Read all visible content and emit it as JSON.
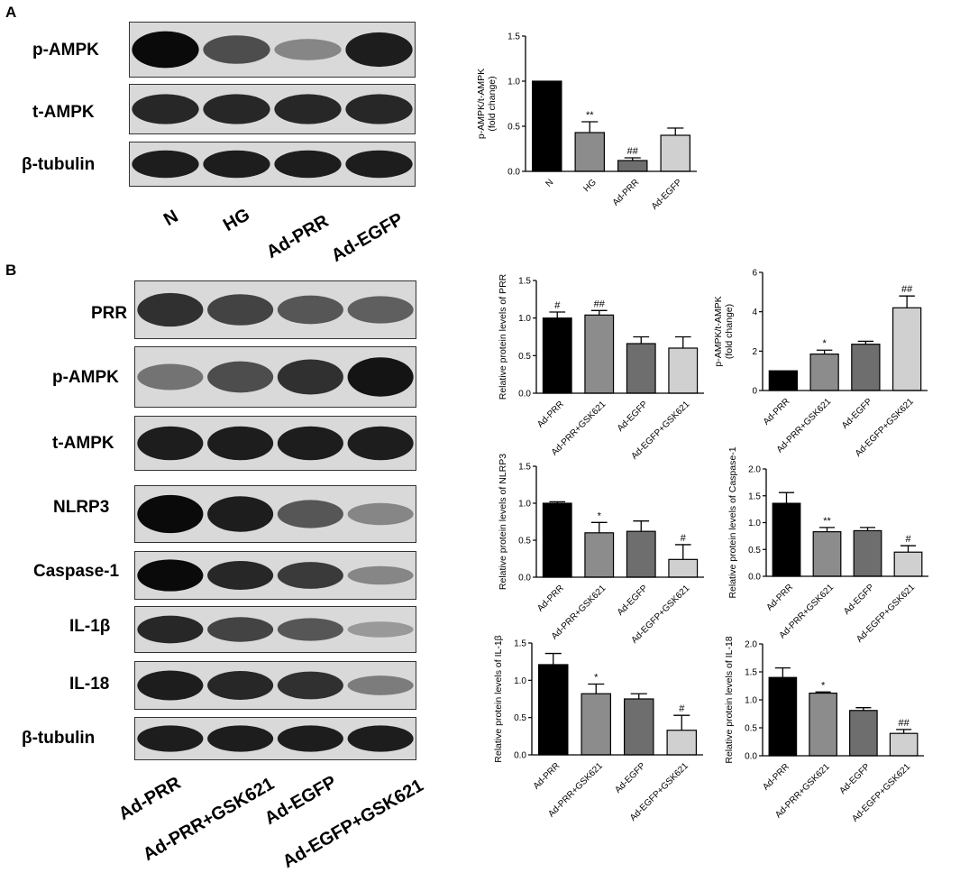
{
  "panels": {
    "a": "A",
    "b": "B"
  },
  "blots_a": {
    "rows": [
      "p-AMPK",
      "t-AMPK",
      "β-tubulin"
    ],
    "lanes": [
      "N",
      "HG",
      "Ad-PRR",
      "Ad-EGFP"
    ],
    "band_intensity": [
      [
        1.0,
        0.65,
        0.35,
        0.9
      ],
      [
        0.85,
        0.85,
        0.85,
        0.85
      ],
      [
        0.9,
        0.9,
        0.9,
        0.9
      ]
    ]
  },
  "blots_b": {
    "rows": [
      "PRR",
      "p-AMPK",
      "t-AMPK",
      "NLRP3",
      "Caspase-1",
      "IL-1β",
      "IL-18",
      "β-tubulin"
    ],
    "lanes": [
      "Ad-PRR",
      "Ad-PRR+GSK621",
      "Ad-EGFP",
      "Ad-EGFP+GSK621"
    ],
    "band_intensity": [
      [
        0.8,
        0.7,
        0.6,
        0.55
      ],
      [
        0.45,
        0.65,
        0.8,
        0.95
      ],
      [
        0.9,
        0.9,
        0.9,
        0.9
      ],
      [
        1.0,
        0.9,
        0.6,
        0.35
      ],
      [
        1.0,
        0.85,
        0.75,
        0.35
      ],
      [
        0.85,
        0.7,
        0.6,
        0.25
      ],
      [
        0.9,
        0.85,
        0.8,
        0.4
      ],
      [
        0.9,
        0.9,
        0.9,
        0.9
      ]
    ]
  },
  "chart_data": [
    {
      "id": "a-pampk",
      "type": "bar",
      "title": "",
      "ylabel_lines": [
        "p-AMPK/t-AMPK",
        "(fold change)"
      ],
      "xlabel": "",
      "categories": [
        "N",
        "HG",
        "Ad-PRR",
        "Ad-EGFP"
      ],
      "values": [
        1.0,
        0.43,
        0.12,
        0.4
      ],
      "errors": [
        0,
        0.12,
        0.03,
        0.08
      ],
      "annotations": [
        "",
        "**",
        "##",
        ""
      ],
      "ylim": [
        0,
        1.5
      ],
      "yticks": [
        "0.0",
        "0.5",
        "1.0",
        "1.5"
      ],
      "colors": [
        "#000000",
        "#8c8c8c",
        "#6e6e6e",
        "#d0d0d0"
      ]
    },
    {
      "id": "b-prr",
      "type": "bar",
      "title": "",
      "ylabel_lines": [
        "Relative protein levels of PRR"
      ],
      "xlabel": "",
      "categories": [
        "Ad-PRR",
        "Ad-PRR+GSK621",
        "Ad-EGFP",
        "Ad-EGFP+GSK621"
      ],
      "values": [
        1.0,
        1.04,
        0.66,
        0.6
      ],
      "errors": [
        0.08,
        0.06,
        0.09,
        0.15
      ],
      "annotations": [
        "#",
        "##",
        "",
        ""
      ],
      "ylim": [
        0,
        1.5
      ],
      "yticks": [
        "0.0",
        "0.5",
        "1.0",
        "1.5"
      ],
      "colors": [
        "#000000",
        "#8c8c8c",
        "#6e6e6e",
        "#d0d0d0"
      ]
    },
    {
      "id": "b-pampk",
      "type": "bar",
      "title": "",
      "ylabel_lines": [
        "p-AMPK/t-AMPK",
        "(fold change)"
      ],
      "xlabel": "",
      "categories": [
        "Ad-PRR",
        "Ad-PRR+GSK621",
        "Ad-EGFP",
        "Ad-EGFP+GSK621"
      ],
      "values": [
        1.0,
        1.85,
        2.35,
        4.2
      ],
      "errors": [
        0,
        0.2,
        0.15,
        0.6
      ],
      "annotations": [
        "",
        "*",
        "",
        "##"
      ],
      "ylim": [
        0,
        6
      ],
      "yticks": [
        "0",
        "2",
        "4",
        "6"
      ],
      "colors": [
        "#000000",
        "#8c8c8c",
        "#6e6e6e",
        "#d0d0d0"
      ]
    },
    {
      "id": "b-nlrp3",
      "type": "bar",
      "title": "",
      "ylabel_lines": [
        "Relative protein levels of NLRP3"
      ],
      "xlabel": "",
      "categories": [
        "Ad-PRR",
        "Ad-PRR+GSK621",
        "Ad-EGFP",
        "Ad-EGFP+GSK621"
      ],
      "values": [
        1.0,
        0.6,
        0.62,
        0.24
      ],
      "errors": [
        0.02,
        0.14,
        0.14,
        0.2
      ],
      "annotations": [
        "",
        "*",
        "",
        "#"
      ],
      "ylim": [
        0,
        1.5
      ],
      "yticks": [
        "0.0",
        "0.5",
        "1.0",
        "1.5"
      ],
      "colors": [
        "#000000",
        "#8c8c8c",
        "#6e6e6e",
        "#d0d0d0"
      ]
    },
    {
      "id": "b-caspase1",
      "type": "bar",
      "title": "",
      "ylabel_lines": [
        "Relative protein levels of Caspase-1"
      ],
      "xlabel": "",
      "categories": [
        "Ad-PRR",
        "Ad-PRR+GSK621",
        "Ad-EGFP",
        "Ad-EGFP+GSK621"
      ],
      "values": [
        1.36,
        0.83,
        0.85,
        0.45
      ],
      "errors": [
        0.2,
        0.08,
        0.06,
        0.12
      ],
      "annotations": [
        "",
        "**",
        "",
        "#"
      ],
      "ylim": [
        0,
        2.0
      ],
      "yticks": [
        "0.0",
        "0.5",
        "1.0",
        "1.5",
        "2.0"
      ],
      "colors": [
        "#000000",
        "#8c8c8c",
        "#6e6e6e",
        "#d0d0d0"
      ]
    },
    {
      "id": "b-il1b",
      "type": "bar",
      "title": "",
      "ylabel_lines": [
        "Relative protein levels of IL-1β"
      ],
      "xlabel": "",
      "categories": [
        "Ad-PRR",
        "Ad-PRR+GSK621",
        "Ad-EGFP",
        "Ad-EGFP+GSK621"
      ],
      "values": [
        1.21,
        0.82,
        0.75,
        0.33
      ],
      "errors": [
        0.15,
        0.13,
        0.07,
        0.2
      ],
      "annotations": [
        "",
        "*",
        "",
        "#"
      ],
      "ylim": [
        0,
        1.5
      ],
      "yticks": [
        "0.0",
        "0.5",
        "1.0",
        "1.5"
      ],
      "colors": [
        "#000000",
        "#8c8c8c",
        "#6e6e6e",
        "#d0d0d0"
      ]
    },
    {
      "id": "b-il18",
      "type": "bar",
      "title": "",
      "ylabel_lines": [
        "Relative protein levels of IL-18"
      ],
      "xlabel": "",
      "categories": [
        "Ad-PRR",
        "Ad-PRR+GSK621",
        "Ad-EGFP",
        "Ad-EGFP+GSK621"
      ],
      "values": [
        1.4,
        1.12,
        0.81,
        0.4
      ],
      "errors": [
        0.17,
        0.02,
        0.05,
        0.07
      ],
      "annotations": [
        "",
        "*",
        "",
        "##"
      ],
      "ylim": [
        0,
        2.0
      ],
      "yticks": [
        "0.0",
        "0.5",
        "1.0",
        "1.5",
        "2.0"
      ],
      "colors": [
        "#000000",
        "#8c8c8c",
        "#6e6e6e",
        "#d0d0d0"
      ]
    }
  ]
}
